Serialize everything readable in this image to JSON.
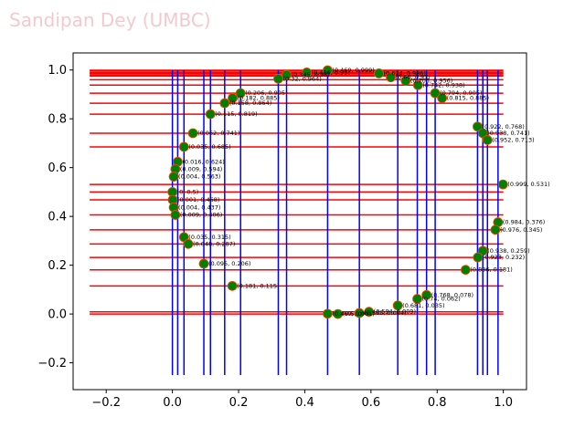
{
  "watermark": "Sandipan Dey (UMBC)",
  "chart_data": {
    "type": "scatter",
    "title": "",
    "xlabel": "",
    "ylabel": "",
    "xlim": [
      -0.3,
      1.07
    ],
    "ylim": [
      -0.31,
      1.07
    ],
    "xticks": [
      -0.2,
      0.0,
      0.2,
      0.4,
      0.6,
      0.8,
      1.0
    ],
    "yticks": [
      -0.2,
      0.0,
      0.2,
      0.4,
      0.6,
      0.8,
      1.0
    ],
    "xtick_labels": [
      "−0.2",
      "0.0",
      "0.2",
      "0.4",
      "0.6",
      "0.8",
      "1.0"
    ],
    "ytick_labels": [
      "−0.2",
      "0.0",
      "0.2",
      "0.4",
      "0.6",
      "0.8",
      "1.0"
    ],
    "grid": false,
    "colors": {
      "vertical_lines": "#0000ff",
      "horizontal_lines": "#ff0000",
      "points": "#008000",
      "point_edges": "#ff4500"
    },
    "hlines": {
      "x_range": [
        -0.25,
        1.0
      ],
      "y": [
        0.999,
        0.995,
        0.989,
        0.986,
        0.98,
        0.975,
        0.96,
        0.938,
        0.905,
        0.864,
        0.819,
        0.741,
        0.685,
        0.531,
        0.5,
        0.468,
        0.406,
        0.345,
        0.287,
        0.232,
        0.181,
        0.115,
        0.009,
        0.0
      ]
    },
    "vlines": {
      "y_range": [
        -0.25,
        1.0
      ],
      "x": [
        0.0,
        0.016,
        0.035,
        0.095,
        0.115,
        0.158,
        0.206,
        0.32,
        0.345,
        0.469,
        0.565,
        0.681,
        0.74,
        0.768,
        0.794,
        0.922,
        0.938,
        0.952,
        0.984
      ]
    },
    "points": [
      {
        "x": 0.469,
        "y": 0.999,
        "label": "(0.469, 0.999)"
      },
      {
        "x": 0.406,
        "y": 0.99,
        "label": "(0.406, 0.99)"
      },
      {
        "x": 0.345,
        "y": 0.98,
        "label": "(0.345, 0.98)"
      },
      {
        "x": 0.32,
        "y": 0.964,
        "label": "(0.32, 0.964)"
      },
      {
        "x": 0.624,
        "y": 0.986,
        "label": "(0.624, 0.986)"
      },
      {
        "x": 0.66,
        "y": 0.97,
        "label": "(0.66, 0.97)"
      },
      {
        "x": 0.705,
        "y": 0.956,
        "label": "(0.705, 0.956)"
      },
      {
        "x": 0.742,
        "y": 0.938,
        "label": "(0.742, 0.938)"
      },
      {
        "x": 0.794,
        "y": 0.905,
        "label": "(0.794, 0.905)"
      },
      {
        "x": 0.815,
        "y": 0.885,
        "label": "(0.815, 0.885)"
      },
      {
        "x": 0.206,
        "y": 0.905,
        "label": "(0.206, 0.905)"
      },
      {
        "x": 0.182,
        "y": 0.885,
        "label": "(0.182, 0.885)"
      },
      {
        "x": 0.158,
        "y": 0.864,
        "label": "(0.158, 0.864)"
      },
      {
        "x": 0.115,
        "y": 0.819,
        "label": "(0.115, 0.819)"
      },
      {
        "x": 0.062,
        "y": 0.741,
        "label": "(0.062, 0.741)"
      },
      {
        "x": 0.035,
        "y": 0.685,
        "label": "(0.035, 0.685)"
      },
      {
        "x": 0.922,
        "y": 0.768,
        "label": "(0.922, 0.768)"
      },
      {
        "x": 0.938,
        "y": 0.741,
        "label": "(0.938, 0.741)"
      },
      {
        "x": 0.952,
        "y": 0.713,
        "label": "(0.952, 0.713)"
      },
      {
        "x": 0.016,
        "y": 0.624,
        "label": "(0.016, 0.624)"
      },
      {
        "x": 0.009,
        "y": 0.594,
        "label": "(0.009, 0.594)"
      },
      {
        "x": 0.004,
        "y": 0.563,
        "label": "(0.004, 0.563)"
      },
      {
        "x": 0.999,
        "y": 0.531,
        "label": "(0.999, 0.531)"
      },
      {
        "x": 0.0,
        "y": 0.5,
        "label": "(0, 0.5)"
      },
      {
        "x": 0.001,
        "y": 0.468,
        "label": "(0.001, 0.468)"
      },
      {
        "x": 0.004,
        "y": 0.437,
        "label": "(0.004, 0.437)"
      },
      {
        "x": 0.009,
        "y": 0.406,
        "label": "(0.009, 0.406)"
      },
      {
        "x": 0.984,
        "y": 0.376,
        "label": "(0.984, 0.376)"
      },
      {
        "x": 0.976,
        "y": 0.345,
        "label": "(0.976, 0.345)"
      },
      {
        "x": 0.035,
        "y": 0.315,
        "label": "(0.035, 0.315)"
      },
      {
        "x": 0.048,
        "y": 0.287,
        "label": "(0.048, 0.287)"
      },
      {
        "x": 0.938,
        "y": 0.259,
        "label": "(0.938, 0.259)"
      },
      {
        "x": 0.923,
        "y": 0.232,
        "label": "(0.923, 0.232)"
      },
      {
        "x": 0.095,
        "y": 0.206,
        "label": "(0.095, 0.206)"
      },
      {
        "x": 0.886,
        "y": 0.181,
        "label": "(0.886, 0.181)"
      },
      {
        "x": 0.181,
        "y": 0.115,
        "label": "(0.181, 0.115)"
      },
      {
        "x": 0.768,
        "y": 0.078,
        "label": "(0.768, 0.078)"
      },
      {
        "x": 0.74,
        "y": 0.062,
        "label": "(0.74, 0.062)"
      },
      {
        "x": 0.681,
        "y": 0.035,
        "label": "(0.681, 0.035)"
      },
      {
        "x": 0.594,
        "y": 0.009,
        "label": "(0.594, 0.009)"
      },
      {
        "x": 0.565,
        "y": 0.004,
        "label": "(0.565, 0.004)"
      },
      {
        "x": 0.469,
        "y": 0.001,
        "label": "(0.469, 0.001)"
      },
      {
        "x": 0.5,
        "y": 0.0,
        "label": "(0.5, 0)"
      }
    ]
  }
}
